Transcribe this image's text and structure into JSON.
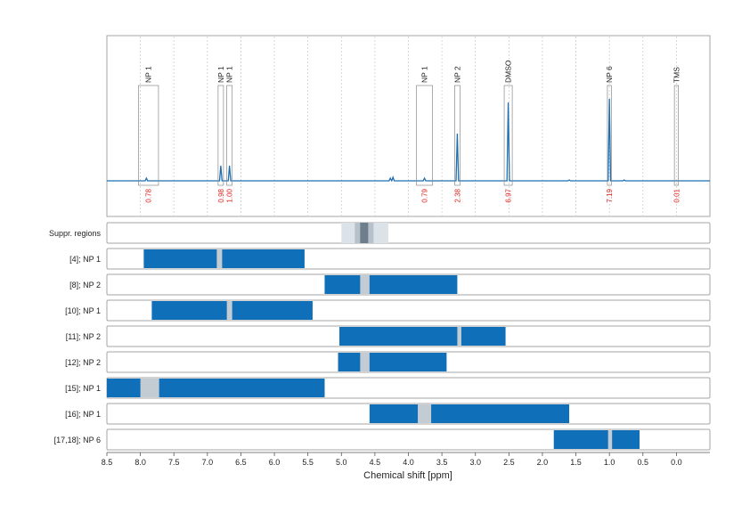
{
  "chart_data": {
    "type": "nmr-spectrum-with-range-bars",
    "xlabel": "Chemical shift [ppm]",
    "xlim": [
      8.5,
      -0.5
    ],
    "x_ticks": [
      "8.5",
      "8.0",
      "7.5",
      "7.0",
      "6.5",
      "6.0",
      "5.5",
      "5.0",
      "4.5",
      "4.0",
      "3.5",
      "3.0",
      "2.5",
      "2.0",
      "1.5",
      "1.0",
      "0.5",
      "0.0"
    ],
    "colors": {
      "spectrum": "#1f6fb0",
      "bar": "#0f6fb9",
      "gap": "#c3cbd3",
      "suppr_outer": "#dbe2e8",
      "suppr_mid": "#b7c1ca",
      "suppr_core": "#6e7e8c",
      "integral_text": "#e0211d"
    },
    "peaks": [
      {
        "label": "NP 1",
        "integral": "0.78",
        "box": [
          8.03,
          7.73
        ],
        "peak_ppm": 7.91,
        "height": 0.03
      },
      {
        "label": "NP 1",
        "integral": "0.98",
        "box": [
          6.84,
          6.76
        ],
        "peak_ppm": 6.8,
        "height": 0.17
      },
      {
        "label": "NP 1",
        "integral": "1.00",
        "box": [
          6.71,
          6.63
        ],
        "peak_ppm": 6.67,
        "height": 0.17
      },
      {
        "label": "NP 1",
        "integral": "0.79",
        "box": [
          3.88,
          3.64
        ],
        "peak_ppm": 3.76,
        "height": 0.03
      },
      {
        "label": "NP 2",
        "integral": "2.38",
        "box": [
          3.31,
          3.23
        ],
        "peak_ppm": 3.27,
        "height": 0.53
      },
      {
        "label": "DMSO",
        "integral": "6.97",
        "box": [
          2.57,
          2.45
        ],
        "peak_ppm": 2.51,
        "height": 0.88
      },
      {
        "label": "NP 6",
        "integral": "7.19",
        "box": [
          1.03,
          0.97
        ],
        "peak_ppm": 1.0,
        "height": 0.92
      },
      {
        "label": "TMS",
        "integral": "0.01",
        "box": [
          0.03,
          -0.03
        ],
        "peak_ppm": 0.0,
        "height": 0.0
      }
    ],
    "minor_peaks": [
      {
        "ppm": 4.27,
        "height": 0.03
      },
      {
        "ppm": 4.23,
        "height": 0.04
      },
      {
        "ppm": 1.6,
        "height": 0.01
      },
      {
        "ppm": 0.78,
        "height": 0.01
      }
    ],
    "suppression_region": {
      "label": "Suppr. regions",
      "outer": [
        5.0,
        4.3
      ],
      "mid": [
        4.8,
        4.52
      ],
      "core": [
        4.72,
        4.6
      ]
    },
    "range_rows": [
      {
        "label": "[4]; NP 1",
        "range": [
          7.95,
          5.55
        ],
        "gap": [
          6.86,
          6.78
        ]
      },
      {
        "label": "[8]; NP 2",
        "range": [
          5.25,
          3.27
        ],
        "gap": [
          4.72,
          4.58
        ]
      },
      {
        "label": "[10]; NP 1",
        "range": [
          7.83,
          5.43
        ],
        "gap": [
          6.71,
          6.63
        ]
      },
      {
        "label": "[11]; NP 2",
        "range": [
          5.03,
          2.55
        ],
        "gap": [
          3.27,
          3.21
        ]
      },
      {
        "label": "[12]; NP 2",
        "range": [
          5.05,
          3.43
        ],
        "gap": [
          4.72,
          4.58
        ]
      },
      {
        "label": "[15]; NP 1",
        "range": [
          8.5,
          5.25
        ],
        "gap": [
          8.0,
          7.72
        ]
      },
      {
        "label": "[16]; NP 1",
        "range": [
          4.58,
          1.6
        ],
        "gap": [
          3.86,
          3.66
        ]
      },
      {
        "label": "[17,18]; NP 6",
        "range": [
          1.83,
          0.55
        ],
        "gap": [
          1.02,
          0.96
        ]
      }
    ]
  }
}
